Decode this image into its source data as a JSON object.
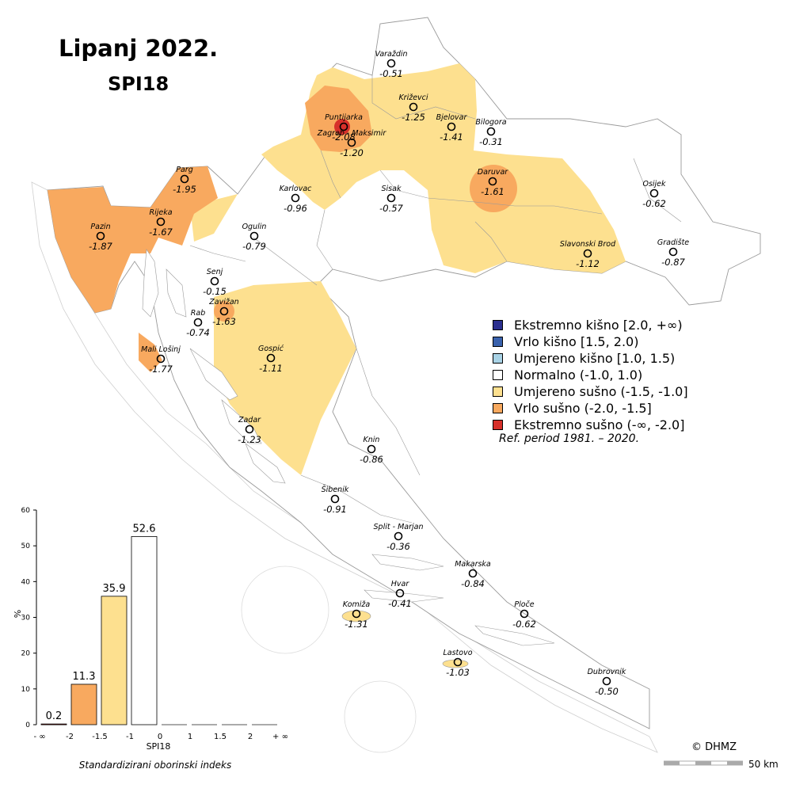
{
  "title": "Lipanj 2022.",
  "subtitle": "SPI18",
  "legend": [
    {
      "label": "Ekstremno kišno [2.0, +∞)",
      "color": "#2b2f8f"
    },
    {
      "label": "Vrlo kišno [1.5, 2.0)",
      "color": "#3a62ad"
    },
    {
      "label": "Umjereno kišno [1.0, 1.5)",
      "color": "#a9d3e6"
    },
    {
      "label": "Normalno (-1.0, 1.0)",
      "color": "#ffffff"
    },
    {
      "label": "Umjereno sušno (-1.5, -1.0]",
      "color": "#fde08f"
    },
    {
      "label": "Vrlo sušno (-2.0, -1.5]",
      "color": "#f8a95f"
    },
    {
      "label": "Ekstremno sušno (-∞, -2.0]",
      "color": "#d7302a"
    }
  ],
  "ref_period": "Ref. period 1981. – 2020.",
  "copyright": "© DHMZ",
  "scale_label": "50 km",
  "stations": [
    {
      "name": "Varaždin",
      "value": "-0.51"
    },
    {
      "name": "Križevci",
      "value": "-1.25"
    },
    {
      "name": "Puntijarka",
      "value": "-2.08"
    },
    {
      "name": "Bjelovar",
      "value": "-1.41"
    },
    {
      "name": "Bilogora",
      "value": "-0.31"
    },
    {
      "name": "Zagreb - Maksimir",
      "value": "-1.20"
    },
    {
      "name": "Parg",
      "value": "-1.95"
    },
    {
      "name": "Karlovac",
      "value": "-0.96"
    },
    {
      "name": "Sisak",
      "value": "-0.57"
    },
    {
      "name": "Daruvar",
      "value": "-1.61"
    },
    {
      "name": "Osijek",
      "value": "-0.62"
    },
    {
      "name": "Pazin",
      "value": "-1.87"
    },
    {
      "name": "Rijeka",
      "value": "-1.67"
    },
    {
      "name": "Ogulin",
      "value": "-0.79"
    },
    {
      "name": "Slavonski Brod",
      "value": "-1.12"
    },
    {
      "name": "Gradište",
      "value": "-0.87"
    },
    {
      "name": "Senj",
      "value": "-0.15"
    },
    {
      "name": "Rab",
      "value": "-0.74"
    },
    {
      "name": "Zavižan",
      "value": "-1.63"
    },
    {
      "name": "Mali Lošinj",
      "value": "-1.77"
    },
    {
      "name": "Gospić",
      "value": "-1.11"
    },
    {
      "name": "Zadar",
      "value": "-1.23"
    },
    {
      "name": "Knin",
      "value": "-0.86"
    },
    {
      "name": "Šibenik",
      "value": "-0.91"
    },
    {
      "name": "Split - Marjan",
      "value": "-0.36"
    },
    {
      "name": "Makarska",
      "value": "-0.84"
    },
    {
      "name": "Hvar",
      "value": "-0.41"
    },
    {
      "name": "Komiža",
      "value": "-1.31"
    },
    {
      "name": "Ploče",
      "value": "-0.62"
    },
    {
      "name": "Lastovo",
      "value": "-1.03"
    },
    {
      "name": "Dubrovnik",
      "value": "-0.50"
    }
  ],
  "chart_data": {
    "type": "bar",
    "categories": [
      "(-∞,-2]",
      "(-2,-1.5]",
      "(-1.5,-1]",
      "(-1,0)",
      "[0,1)",
      "[1,1.5)",
      "[1.5,2)",
      "[2,+∞)"
    ],
    "values": [
      0.2,
      11.3,
      35.9,
      52.6,
      0,
      0,
      0,
      0
    ],
    "value_labels": [
      "0.2",
      "11.3",
      "35.9",
      "52.6",
      "",
      "",
      "",
      ""
    ],
    "colors": [
      "#d7302a",
      "#f8a95f",
      "#fde08f",
      "#ffffff",
      "#ffffff",
      "#a9d3e6",
      "#3a62ad",
      "#2b2f8f"
    ],
    "x_tick_labels": [
      "- ∞",
      "-2",
      "-1.5",
      "-1",
      "0",
      "1",
      "1.5",
      "2",
      "+ ∞"
    ],
    "y_ticks": [
      "0",
      "10",
      "20",
      "30",
      "40",
      "50",
      "60"
    ],
    "ylim": [
      0,
      60
    ],
    "ylabel": "%",
    "xlabel": "SPI18",
    "caption": "Standardizirani oborinski indeks"
  }
}
